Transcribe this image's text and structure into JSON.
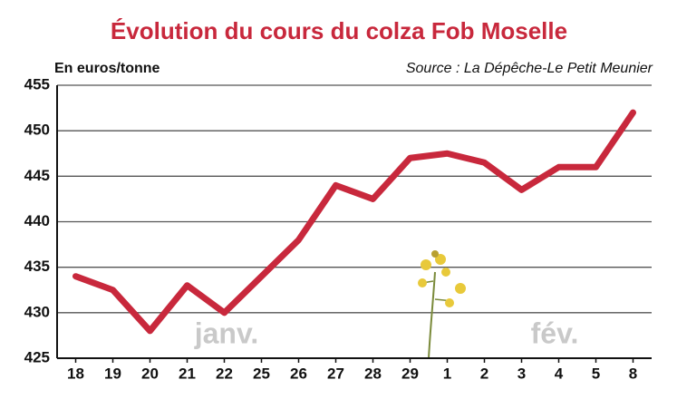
{
  "chart_data": {
    "type": "line",
    "title": "Évolution du cours du colza Fob Moselle",
    "y_label": "En euros/tonne",
    "source": "Source : La Dépêche-Le Petit Meunier",
    "annotations": [
      "janv.",
      "fév."
    ],
    "categories": [
      "18",
      "19",
      "20",
      "21",
      "22",
      "25",
      "26",
      "27",
      "28",
      "29",
      "1",
      "2",
      "3",
      "4",
      "5",
      "8"
    ],
    "values": [
      434,
      432.5,
      428,
      433,
      430,
      434,
      438,
      444,
      442.5,
      447,
      447.5,
      446.5,
      443.5,
      446,
      446,
      452
    ],
    "color": "#c8283c",
    "ylim": [
      425,
      455
    ],
    "yticks": [
      425,
      430,
      435,
      440,
      445,
      450,
      455
    ],
    "grid": true
  }
}
